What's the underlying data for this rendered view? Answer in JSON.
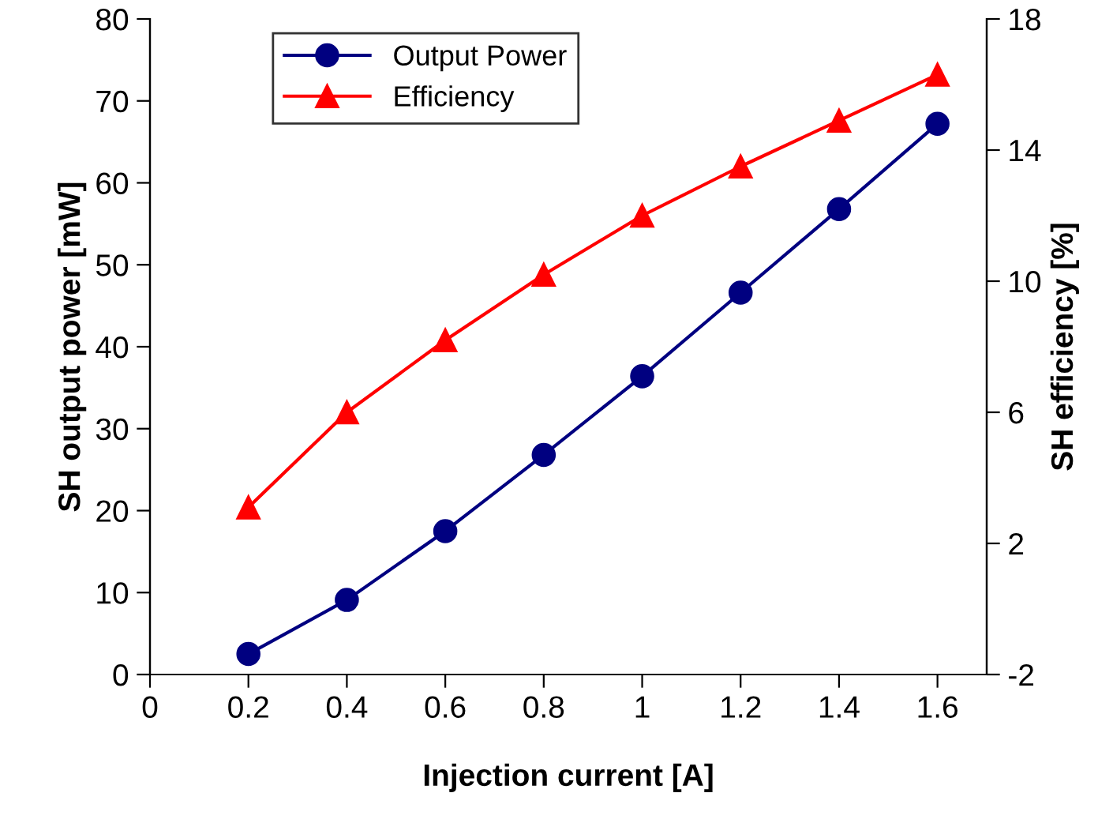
{
  "chart_data": {
    "type": "line",
    "xlabel": "Injection current [A]",
    "ylabel": "SH output power [mW]",
    "y2label": "SH efficiency [%]",
    "x": [
      0.2,
      0.4,
      0.6,
      0.8,
      1.0,
      1.2,
      1.4,
      1.6
    ],
    "series": [
      {
        "name": "Output Power",
        "color": "#000080",
        "marker": "circle",
        "values": [
          2.5,
          9.1,
          17.5,
          26.8,
          36.4,
          46.6,
          56.8,
          67.2
        ]
      },
      {
        "name": "Efficiency",
        "color": "#ff0000",
        "marker": "triangle",
        "axis": "y2",
        "values": [
          3.1,
          6.0,
          8.2,
          10.2,
          12.0,
          13.5,
          14.9,
          16.3
        ]
      }
    ],
    "xlim": [
      0,
      1.7
    ],
    "xticks": [
      0,
      0.2,
      0.4,
      0.6,
      0.8,
      1,
      1.2,
      1.4,
      1.6
    ],
    "ylim": [
      0,
      80
    ],
    "yticks": [
      0,
      10,
      20,
      30,
      40,
      50,
      60,
      70,
      80
    ],
    "y2lim": [
      -2,
      18
    ],
    "y2ticks": [
      -2,
      2,
      6,
      10,
      14,
      18
    ],
    "grid": false,
    "legend": "top left",
    "line_style": "solid"
  }
}
